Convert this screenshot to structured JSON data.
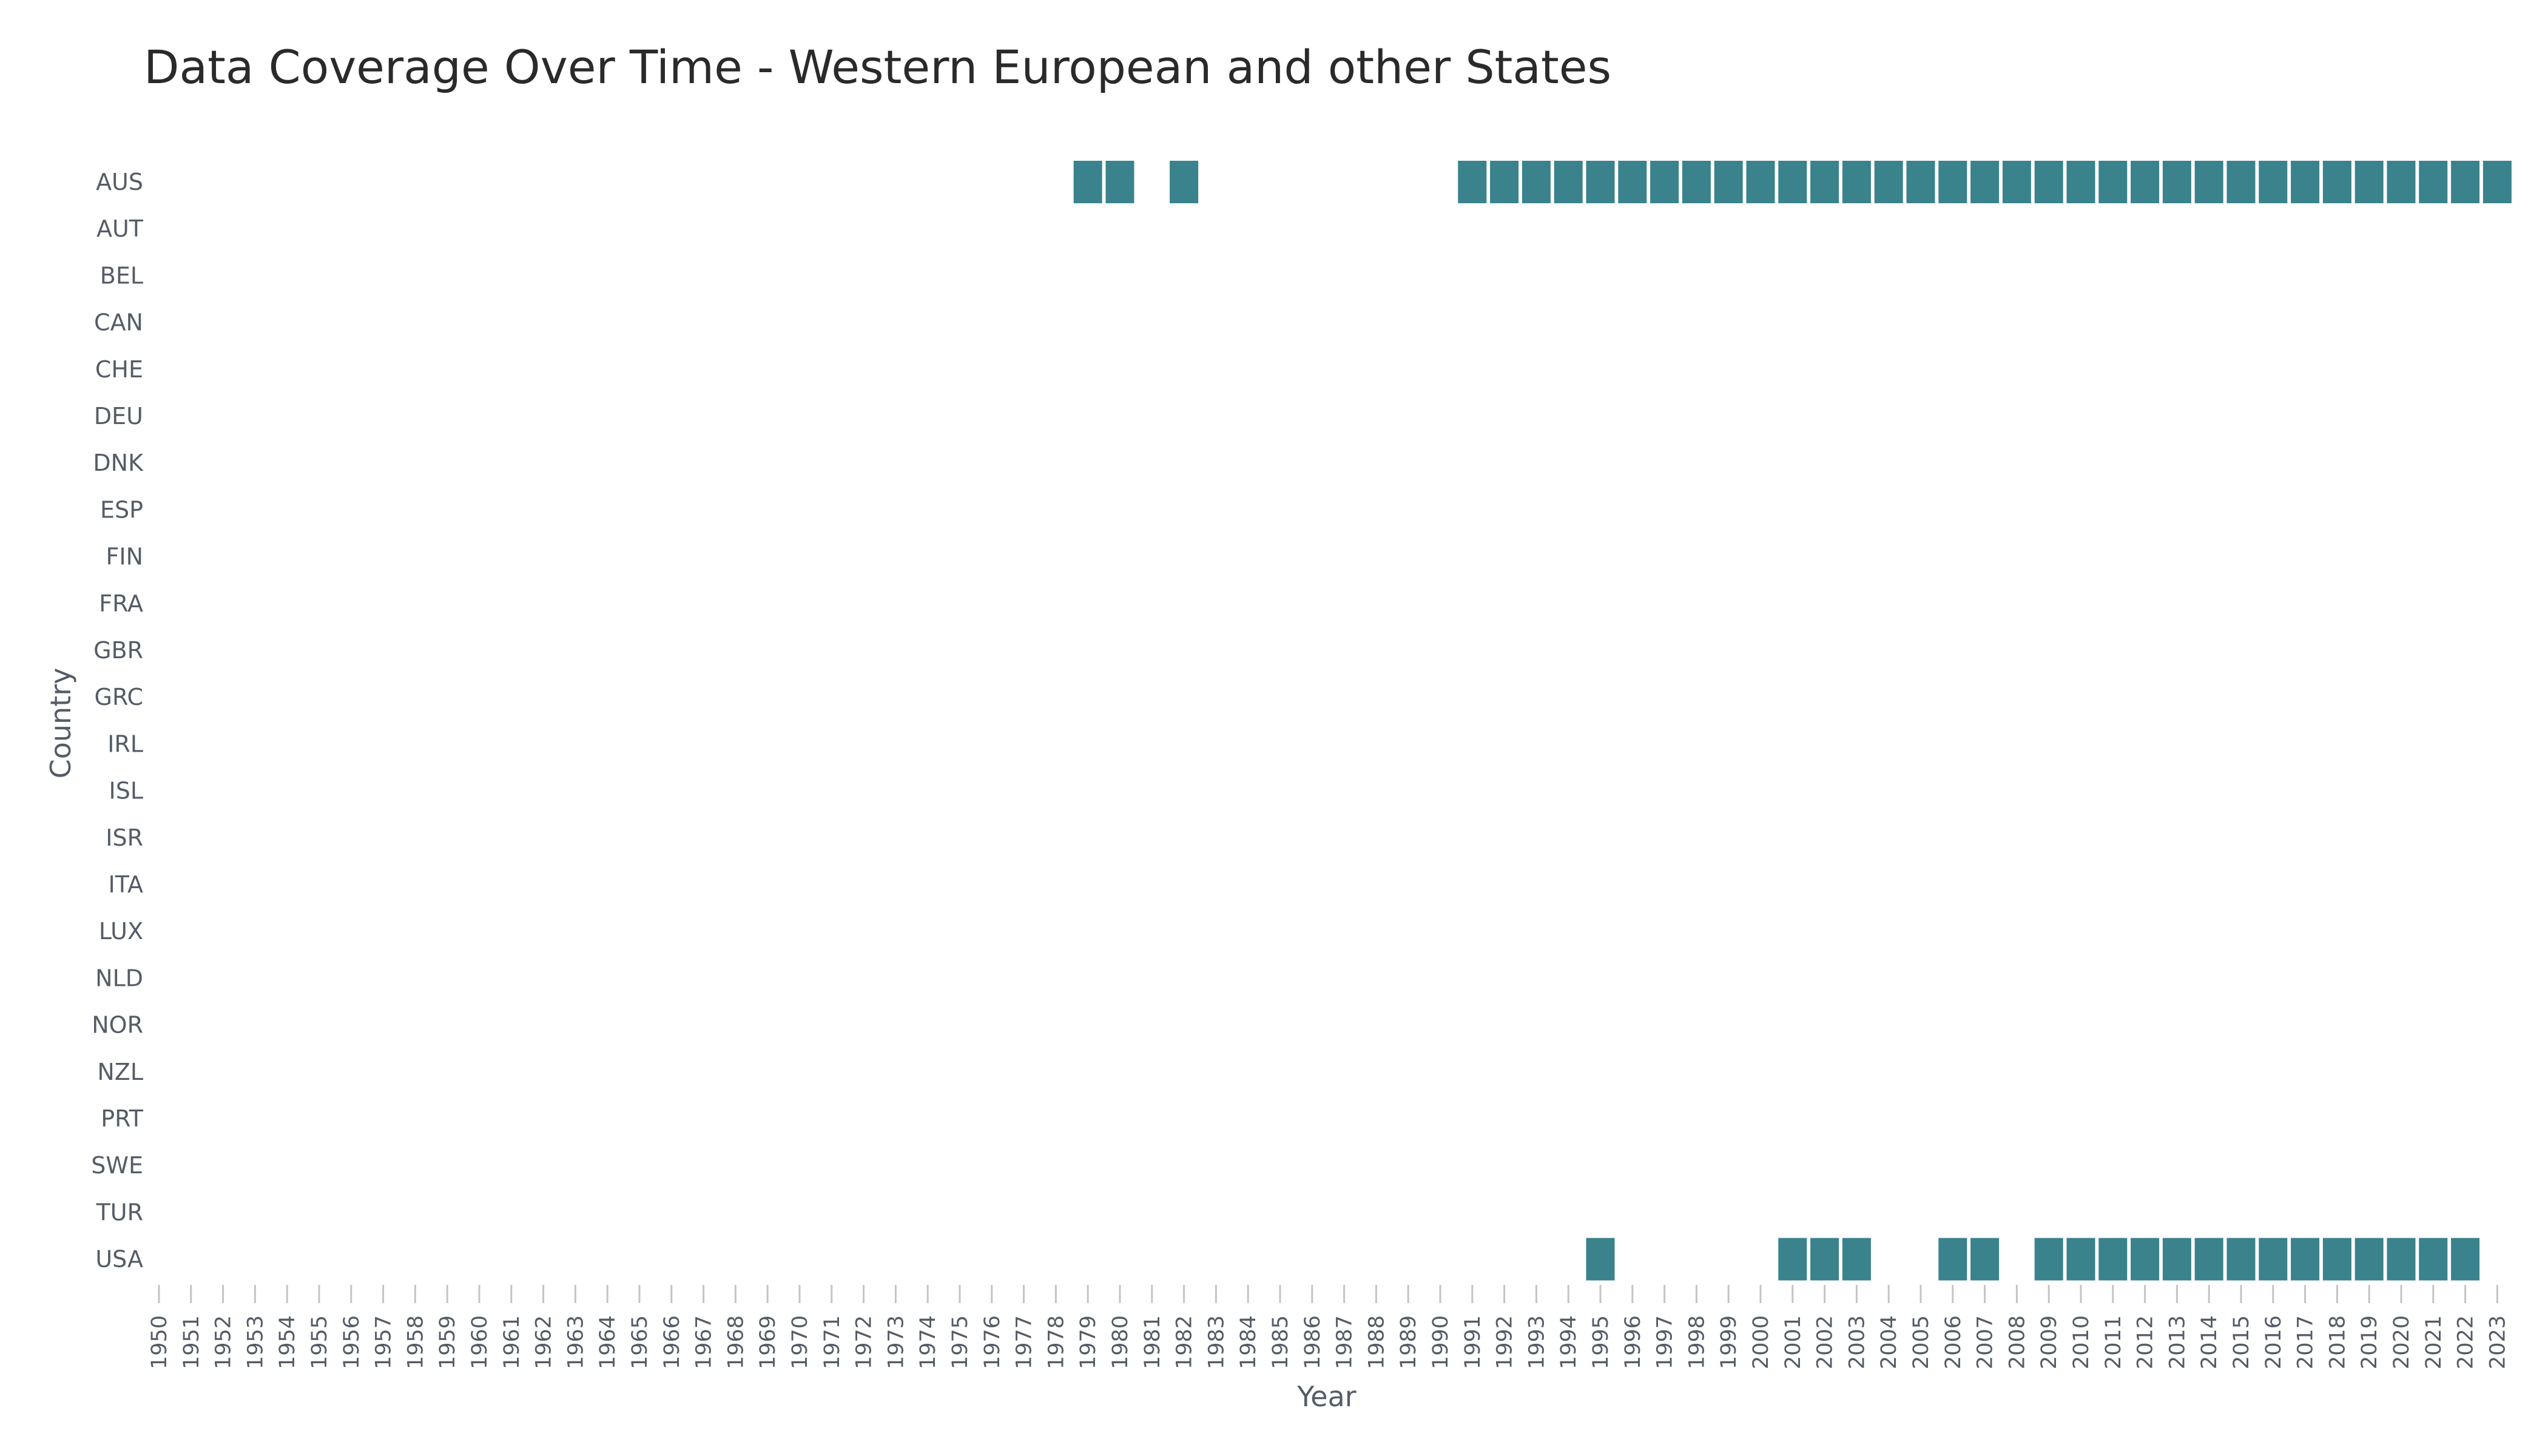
{
  "chart_data": {
    "type": "heatmap",
    "title": "Data Coverage Over Time - Western European and other States",
    "xlabel": "Year",
    "ylabel": "Country",
    "grid": false,
    "legend": "none",
    "colors": {
      "cell": "#3a828c",
      "text": "#555c66",
      "title": "#2a2a2a",
      "tick": "#c4c4c4"
    },
    "years": [
      1950,
      1951,
      1952,
      1953,
      1954,
      1955,
      1956,
      1957,
      1958,
      1959,
      1960,
      1961,
      1962,
      1963,
      1964,
      1965,
      1966,
      1967,
      1968,
      1969,
      1970,
      1971,
      1972,
      1973,
      1974,
      1975,
      1976,
      1977,
      1978,
      1979,
      1980,
      1981,
      1982,
      1983,
      1984,
      1985,
      1986,
      1987,
      1988,
      1989,
      1990,
      1991,
      1992,
      1993,
      1994,
      1995,
      1996,
      1997,
      1998,
      1999,
      2000,
      2001,
      2002,
      2003,
      2004,
      2005,
      2006,
      2007,
      2008,
      2009,
      2010,
      2011,
      2012,
      2013,
      2014,
      2015,
      2016,
      2017,
      2018,
      2019,
      2020,
      2021,
      2022,
      2023
    ],
    "x_tick_labels": [
      "1950",
      "1951",
      "1952",
      "1953",
      "1954",
      "1955",
      "1956",
      "1957",
      "1958",
      "1959",
      "1960",
      "1961",
      "1962",
      "1963",
      "1964",
      "1965",
      "1966",
      "1967",
      "1968",
      "1969",
      "1970",
      "1971",
      "1972",
      "1973",
      "1974",
      "1975",
      "1976",
      "1977",
      "1978",
      "1979",
      "1980",
      "1981",
      "1982",
      "1983",
      "1984",
      "1985",
      "1986",
      "1987",
      "1988",
      "1989",
      "1990",
      "1991",
      "1992",
      "1993",
      "1994",
      "1995",
      "1996",
      "1997",
      "1998",
      "1999",
      "2000",
      "2001",
      "2002",
      "2003",
      "2004",
      "2005",
      "2006",
      "2007",
      "2008",
      "2009",
      "2010",
      "2011",
      "2012",
      "2013",
      "2014",
      "2015",
      "2016",
      "2017",
      "2018",
      "2019",
      "2020",
      "2021",
      "2022",
      "2023"
    ],
    "countries": [
      "AUS",
      "AUT",
      "BEL",
      "CAN",
      "CHE",
      "DEU",
      "DNK",
      "ESP",
      "FIN",
      "FRA",
      "GBR",
      "GRC",
      "IRL",
      "ISL",
      "ISR",
      "ITA",
      "LUX",
      "NLD",
      "NOR",
      "NZL",
      "PRT",
      "SWE",
      "TUR",
      "USA"
    ],
    "coverage": {
      "AUS": [
        1979,
        1980,
        1982,
        1991,
        1992,
        1993,
        1994,
        1995,
        1996,
        1997,
        1998,
        1999,
        2000,
        2001,
        2002,
        2003,
        2004,
        2005,
        2006,
        2007,
        2008,
        2009,
        2010,
        2011,
        2012,
        2013,
        2014,
        2015,
        2016,
        2017,
        2018,
        2019,
        2020,
        2021,
        2022,
        2023
      ],
      "USA": [
        1995,
        2001,
        2002,
        2003,
        2006,
        2007,
        2009,
        2010,
        2011,
        2012,
        2013,
        2014,
        2015,
        2016,
        2017,
        2018,
        2019,
        2020,
        2021,
        2022
      ]
    }
  }
}
